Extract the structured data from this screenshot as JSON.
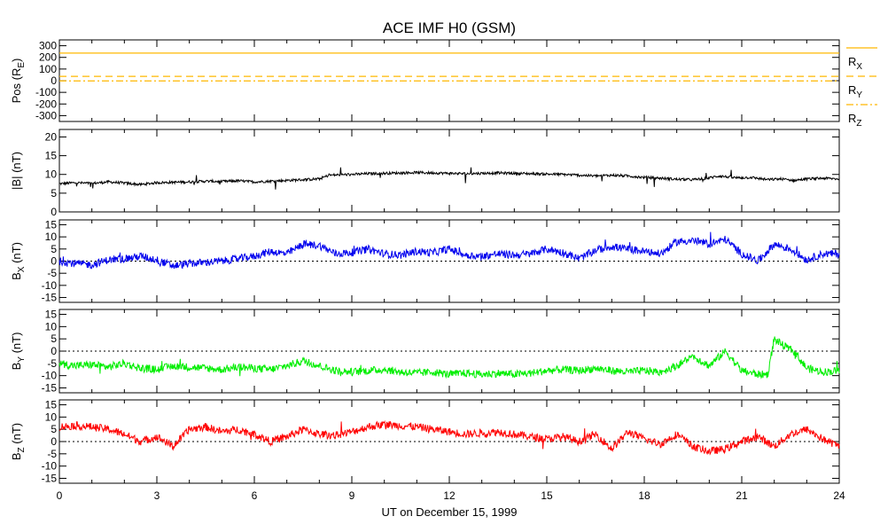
{
  "title": "ACE IMF H0 (GSM)",
  "xlabel": "UT on December 15, 1999",
  "colors": {
    "rx": "#ffb800",
    "ry": "#ffb800",
    "rz": "#ffb800",
    "bmag": "#000000",
    "bx": "#0000ee",
    "by": "#00ee00",
    "bz": "#ff0000"
  },
  "chart_data": [
    {
      "type": "line",
      "ylabel": "Pos (R_E)",
      "ylabel_main": "Pos (R",
      "ylabel_sub": "E",
      "ylabel_end": ")",
      "ylim": [
        -350,
        350
      ],
      "yticks": [
        -300,
        -200,
        -100,
        0,
        100,
        200,
        300
      ],
      "xlim": [
        0,
        24
      ],
      "series": [
        {
          "name": "R_X",
          "label_main": "R",
          "label_sub": "X",
          "style": "solid",
          "x": [
            0,
            24
          ],
          "values": [
            237,
            237
          ]
        },
        {
          "name": "R_Y",
          "label_main": "R",
          "label_sub": "Y",
          "style": "dashed",
          "x": [
            0,
            24
          ],
          "values": [
            37,
            37
          ]
        },
        {
          "name": "R_Z",
          "label_main": "R",
          "label_sub": "Z",
          "style": "dashdot",
          "x": [
            0,
            24
          ],
          "values": [
            -2,
            -2
          ]
        }
      ]
    },
    {
      "type": "line",
      "ylabel": "|B| (nT)",
      "ylabel_main": "|B| (nT)",
      "ylim": [
        0,
        22
      ],
      "yticks": [
        0,
        5,
        10,
        15,
        20
      ],
      "zero_line": false,
      "series": [
        {
          "key": "bmag",
          "x": [
            0,
            0.5,
            1,
            1.5,
            2,
            2.5,
            3,
            3.5,
            4,
            4.5,
            5,
            5.5,
            6,
            6.5,
            7,
            7.5,
            8,
            8.3,
            9,
            9.5,
            10,
            10.5,
            11,
            11.5,
            12,
            12.5,
            13,
            13.5,
            14,
            14.5,
            15,
            15.5,
            16,
            16.5,
            17,
            17.5,
            18,
            18.5,
            19,
            19.5,
            19.9,
            20.3,
            20.8,
            21.3,
            21.8,
            22.2,
            22.6,
            23,
            23.5,
            24
          ],
          "values": [
            7.5,
            7.8,
            7.6,
            8.0,
            7.7,
            7.3,
            7.8,
            7.9,
            8.0,
            8.2,
            8.1,
            8.3,
            8.0,
            8.2,
            8.4,
            8.6,
            8.8,
            9.8,
            10.0,
            10.2,
            10.3,
            10.4,
            10.5,
            10.4,
            10.3,
            10.2,
            10.3,
            10.4,
            10.3,
            10.2,
            10.1,
            10.0,
            9.8,
            9.6,
            9.8,
            9.6,
            9.2,
            9.0,
            8.7,
            8.6,
            8.9,
            9.6,
            9.1,
            9.2,
            8.6,
            8.8,
            8.4,
            8.8,
            9.0,
            8.8
          ]
        }
      ]
    },
    {
      "type": "line",
      "ylabel": "B_X (nT)",
      "ylabel_main": "B",
      "ylabel_sub": "X",
      "ylabel_end": " (nT)",
      "ylim": [
        -17,
        17
      ],
      "yticks": [
        -15,
        -10,
        -5,
        0,
        5,
        10,
        15
      ],
      "zero_line": true,
      "series": [
        {
          "key": "bx",
          "x": [
            0,
            0.5,
            1,
            1.5,
            2,
            2.5,
            3,
            3.5,
            4,
            4.5,
            5,
            5.5,
            6,
            6.5,
            7,
            7.5,
            8,
            8.5,
            9,
            9.5,
            10,
            10.5,
            11,
            11.5,
            12,
            12.5,
            13,
            13.5,
            14,
            14.5,
            15,
            15.5,
            16,
            16.5,
            17,
            17.5,
            18,
            18.5,
            19,
            19.5,
            20,
            20.5,
            21,
            21.5,
            22,
            22.5,
            23,
            23.5,
            24
          ],
          "values": [
            0,
            -1,
            -1.5,
            0.5,
            1,
            2,
            0.5,
            -2,
            -1,
            -0.5,
            0,
            1,
            2,
            4,
            3,
            7,
            6.5,
            3,
            3.5,
            5,
            3,
            2.5,
            4,
            3.5,
            5,
            2.5,
            2,
            3,
            2.5,
            3,
            5,
            3.5,
            1,
            4.5,
            6,
            5,
            4,
            3,
            8,
            8.5,
            7,
            9,
            3,
            0,
            7,
            5,
            0.5,
            3,
            3
          ]
        }
      ]
    },
    {
      "type": "line",
      "ylabel": "B_Y (nT)",
      "ylabel_main": "B",
      "ylabel_sub": "Y",
      "ylabel_end": " (nT)",
      "ylim": [
        -17,
        17
      ],
      "yticks": [
        -15,
        -10,
        -5,
        0,
        5,
        10,
        15
      ],
      "zero_line": true,
      "series": [
        {
          "key": "by",
          "x": [
            0,
            0.5,
            1,
            1.5,
            2,
            2.5,
            3,
            3.5,
            4,
            4.5,
            5,
            5.5,
            6,
            6.5,
            7,
            7.5,
            8,
            8.5,
            9,
            9.5,
            10,
            10.5,
            11,
            11.5,
            12,
            12.5,
            13,
            13.5,
            14,
            14.5,
            15,
            15.5,
            16,
            16.5,
            17,
            17.5,
            18,
            18.5,
            19,
            19.5,
            20,
            20.5,
            21,
            21.5,
            21.8,
            22,
            22.3,
            22.6,
            23,
            23.5,
            24
          ],
          "values": [
            -5,
            -6,
            -5.5,
            -6.5,
            -5,
            -7,
            -7.5,
            -6,
            -6.5,
            -7,
            -7.5,
            -6.5,
            -7,
            -7.5,
            -6,
            -4,
            -6,
            -8,
            -8.5,
            -8,
            -7.5,
            -8.5,
            -9,
            -8.5,
            -9.5,
            -9,
            -9.5,
            -9,
            -9.5,
            -9,
            -8,
            -7.5,
            -8,
            -7,
            -8,
            -8.5,
            -8,
            -8.5,
            -6,
            -2,
            -6,
            0,
            -8,
            -9.5,
            -9.5,
            5,
            2,
            0,
            -7,
            -8.5,
            -8
          ]
        }
      ]
    },
    {
      "type": "line",
      "ylabel": "B_Z (nT)",
      "ylabel_main": "B",
      "ylabel_sub": "Z",
      "ylabel_end": " (nT)",
      "ylim": [
        -17,
        17
      ],
      "yticks": [
        -15,
        -10,
        -5,
        0,
        5,
        10,
        15
      ],
      "zero_line": true,
      "xticks": [
        0,
        3,
        6,
        9,
        12,
        15,
        18,
        21,
        24
      ],
      "series": [
        {
          "key": "bz",
          "x": [
            0,
            0.5,
            1,
            1.5,
            2,
            2.5,
            3,
            3.5,
            4,
            4.5,
            5,
            5.5,
            6,
            6.5,
            7,
            7.5,
            8,
            8.5,
            9,
            9.5,
            10,
            10.5,
            11,
            11.5,
            12,
            12.5,
            13,
            13.5,
            14,
            14.5,
            15,
            15.5,
            16,
            16.5,
            17,
            17.5,
            18,
            18.5,
            19,
            19.5,
            20,
            20.5,
            21,
            21.5,
            22,
            22.5,
            23,
            23.5,
            24
          ],
          "values": [
            6,
            6.5,
            6,
            5,
            3,
            0,
            2,
            -2,
            5,
            6,
            4,
            5,
            3,
            0,
            2,
            5,
            3,
            2.5,
            4,
            6,
            7,
            6.5,
            6,
            5,
            4,
            3,
            3.5,
            4,
            3,
            2,
            1,
            2,
            0,
            3,
            -3,
            4,
            1,
            -1,
            3,
            -2,
            -4,
            -3,
            0,
            2,
            -2,
            3,
            5,
            1,
            -2
          ]
        }
      ]
    }
  ]
}
